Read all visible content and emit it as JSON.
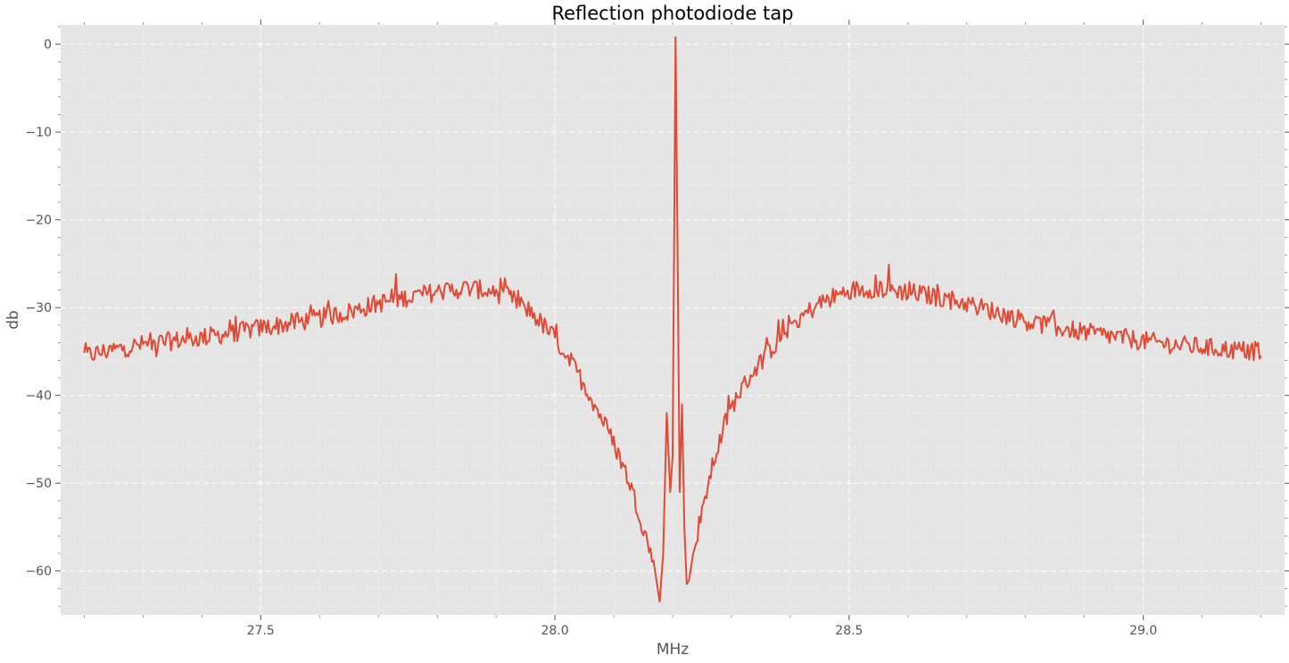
{
  "chart_data": {
    "type": "line",
    "title": "Reflection photodiode tap",
    "xlabel": "MHz",
    "ylabel": "db",
    "xlim": [
      27.16,
      29.24
    ],
    "ylim": [
      -65,
      2.2
    ],
    "xticks": [
      27.5,
      28.0,
      28.5,
      29.0
    ],
    "xtick_labels": [
      "27.5",
      "28.0",
      "28.5",
      "29.0"
    ],
    "yticks": [
      0,
      -10,
      -20,
      -30,
      -40,
      -50,
      -60
    ],
    "ytick_labels": [
      "0",
      "−10",
      "−20",
      "−30",
      "−40",
      "−50",
      "−60"
    ],
    "grid": true,
    "line_color": "#E24A33",
    "background": "#E5E5E5",
    "series": [
      {
        "x": [
          27.2,
          27.25,
          27.3,
          27.35,
          27.4,
          27.45,
          27.5,
          27.55,
          27.6,
          27.65,
          27.7,
          27.75,
          27.8,
          27.85,
          27.88,
          27.92,
          27.96,
          28.0,
          28.03,
          28.06,
          28.09,
          28.11,
          28.13,
          28.15,
          28.165,
          28.178,
          28.184,
          28.19,
          28.196,
          28.2,
          28.205,
          28.208,
          28.212,
          28.216,
          28.22,
          28.224,
          28.228,
          28.235,
          28.25,
          28.27,
          28.29,
          28.31,
          28.34,
          28.37,
          28.4,
          28.45,
          28.5,
          28.55,
          28.6,
          28.65,
          28.7,
          28.75,
          28.8,
          28.85,
          28.9,
          28.95,
          29.0,
          29.05,
          29.1,
          29.15,
          29.2
        ],
        "y": [
          -35.5,
          -34.8,
          -34.2,
          -33.8,
          -33.4,
          -32.9,
          -32.3,
          -31.8,
          -31.2,
          -30.5,
          -29.5,
          -28.8,
          -28.2,
          -27.8,
          -28.0,
          -28.7,
          -30.5,
          -33.5,
          -36.5,
          -40.0,
          -44.0,
          -47.0,
          -50.5,
          -55.0,
          -58.5,
          -63.5,
          -58.0,
          -42.0,
          -51.0,
          -47.0,
          0.8,
          -20.0,
          -51.0,
          -41.0,
          -55.0,
          -61.5,
          -61.0,
          -58.0,
          -53.0,
          -47.5,
          -43.0,
          -40.0,
          -37.0,
          -34.5,
          -32.0,
          -29.5,
          -28.0,
          -27.8,
          -28.2,
          -28.8,
          -29.5,
          -30.5,
          -31.5,
          -32.2,
          -32.8,
          -33.3,
          -33.8,
          -34.2,
          -34.5,
          -34.8,
          -35.0
        ]
      }
    ]
  }
}
